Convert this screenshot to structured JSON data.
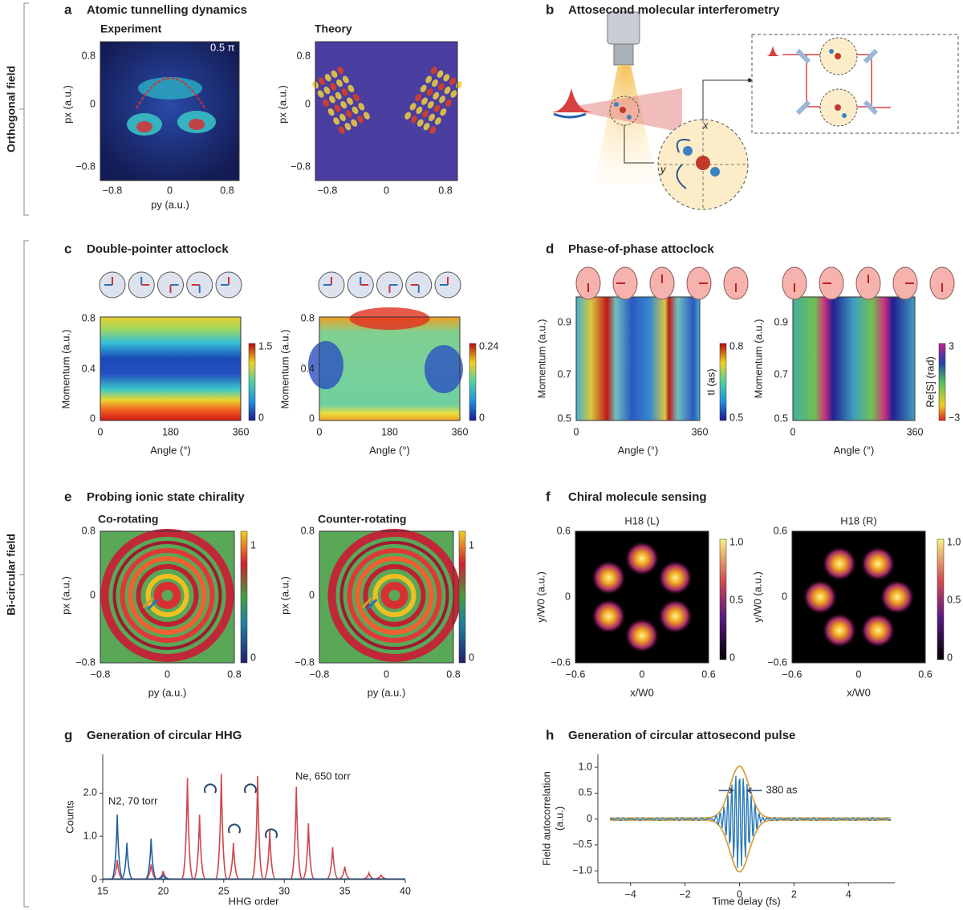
{
  "side_labels": {
    "top": "Orthogonal field",
    "bottom": "Bi-circular field"
  },
  "a": {
    "letter": "a",
    "title": "Atomic tunnelling dynamics",
    "left_title": "Experiment",
    "right_title": "Theory",
    "annotation": "0.5 π",
    "y_label": "px (a.u.)",
    "x_label": "py (a.u.)",
    "yticks": [
      "0.8",
      "0",
      "−0.8"
    ],
    "xticks": [
      "−0.8",
      "0",
      "0.8"
    ]
  },
  "b": {
    "letter": "b",
    "title": "Attosecond molecular interferometry",
    "axis_x": "x",
    "axis_y": "y"
  },
  "c": {
    "letter": "c",
    "title": "Double-pointer attoclock",
    "y_label": "Momentum (a.u.)",
    "x_label": "Angle (°)",
    "yticks": [
      "0.8",
      "0.4",
      "0"
    ],
    "xticks": [
      "0",
      "180",
      "360"
    ],
    "colorbar_left": [
      "1.5",
      "0"
    ],
    "colorbar_right": [
      "0.24",
      "0"
    ]
  },
  "d": {
    "letter": "d",
    "title": "Phase-of-phase attoclock",
    "y_label": "Momentum (a.u.)",
    "x_label": "Angle (°)",
    "yticks": [
      "0.9",
      "0.7",
      "0.5"
    ],
    "xticks": [
      "0",
      "360"
    ],
    "colorbar_left": [
      "0.8",
      "0.5"
    ],
    "colorbar_left_label": "tI (as)",
    "colorbar_right": [
      "3",
      "−3"
    ],
    "colorbar_right_label": "Re[S] (rad)"
  },
  "e": {
    "letter": "e",
    "title": "Probing ionic state chirality",
    "left_title": "Co-rotating",
    "right_title": "Counter-rotating",
    "y_label": "px (a.u.)",
    "x_label": "py (a.u.)",
    "yticks": [
      "0.8",
      "0",
      "−0.8"
    ],
    "xticks": [
      "−0.8",
      "0",
      "0.8"
    ],
    "colorbar": [
      "1",
      "0"
    ]
  },
  "f": {
    "letter": "f",
    "title": "Chiral molecule sensing",
    "left_title": "H18 (L)",
    "right_title": "H18 (R)",
    "y_label": "y/W0 (a.u.)",
    "x_label": "x/W0",
    "yticks": [
      "0.6",
      "0",
      "−0.6"
    ],
    "xticks": [
      "−0.6",
      "0",
      "0.6"
    ],
    "colorbar": [
      "1.0",
      "0.5",
      "0"
    ]
  },
  "g": {
    "letter": "g",
    "title": "Generation of circular HHG",
    "type": "line",
    "x_label": "HHG order",
    "y_label": "Counts",
    "xlim": [
      15,
      40
    ],
    "ylim": [
      0,
      2.9
    ],
    "xticks": [
      15,
      20,
      25,
      30,
      35,
      40
    ],
    "yticks": [
      0,
      {
        "value": 1,
        "label": "1.0"
      },
      {
        "value": 2,
        "label": "2.0"
      }
    ],
    "annotations": [
      "N2, 70 torr",
      "Ne, 650 torr"
    ],
    "series": [
      {
        "color": "#d0454a",
        "x": [
          16.2,
          19,
          20,
          22,
          23,
          24.8,
          25.8,
          27.8,
          28.8,
          31,
          32,
          34,
          35,
          37,
          38
        ],
        "values": [
          0.45,
          0.35,
          0.2,
          2.35,
          1.5,
          2.45,
          0.85,
          2.4,
          1.15,
          2.15,
          1.3,
          0.75,
          0.3,
          0.15,
          0.1
        ]
      },
      {
        "color": "#1f5fa0",
        "x": [
          16.2,
          17,
          19,
          20
        ],
        "values": [
          1.5,
          0.85,
          0.95,
          0.1
        ]
      }
    ]
  },
  "h": {
    "letter": "h",
    "title": "Generation of circular attosecond pulse",
    "type": "line",
    "x_label": "Time delay (fs)",
    "y_label": [
      "Field autocorrelation",
      "(a.u.)"
    ],
    "annotation": "380 as",
    "xlim": [
      -5.2,
      5.7
    ],
    "ylim": [
      -1.23,
      1.25
    ],
    "xticks": [
      {
        "value": -4,
        "label": "−4"
      },
      {
        "value": -2,
        "label": "−2"
      },
      0,
      2,
      4
    ],
    "yticks": [
      {
        "value": 1,
        "label": "1.0"
      },
      0.5,
      0,
      {
        "value": -0.5,
        "label": "−0.5"
      },
      {
        "value": -1,
        "label": "−1.0"
      }
    ]
  }
}
